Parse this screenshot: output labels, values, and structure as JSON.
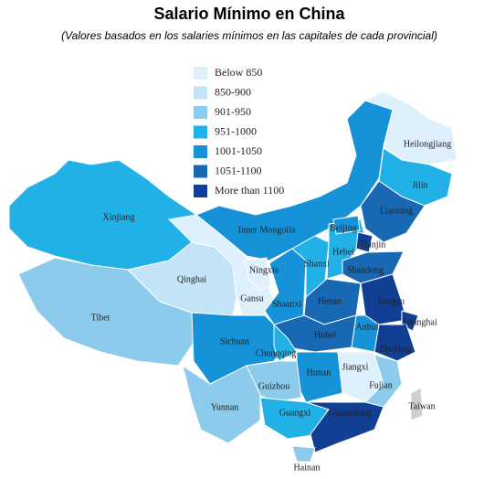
{
  "title": "Salario Mínimo  en China",
  "subtitle": "(Valores basados en los salaries mínimos en las capitales de cada provincial)",
  "legend": [
    {
      "label": "Below 850",
      "color": "#def0fb"
    },
    {
      "label": "850-900",
      "color": "#c3e3f6"
    },
    {
      "label": "901-950",
      "color": "#8ccbec"
    },
    {
      "label": "951-1000",
      "color": "#22b1e6"
    },
    {
      "label": "1001-1050",
      "color": "#1592d8"
    },
    {
      "label": "1051-1100",
      "color": "#1868b3"
    },
    {
      "label": "More than 1100",
      "color": "#103f93"
    }
  ],
  "regions": [
    {
      "name": "Xinjiang",
      "color": "#22b1e6"
    },
    {
      "name": "Tibet",
      "color": "#8ccbec"
    },
    {
      "name": "Qinghai",
      "color": "#c3e3f6"
    },
    {
      "name": "Gansu",
      "color": "#def0fb"
    },
    {
      "name": "Inner Mongolia",
      "color": "#1592d8"
    },
    {
      "name": "Heilongjiang",
      "color": "#def0fb"
    },
    {
      "name": "Jilin",
      "color": "#22b1e6"
    },
    {
      "name": "Liaoning",
      "color": "#1868b3"
    },
    {
      "name": "Ningxia",
      "color": "#def0fb"
    },
    {
      "name": "Shaanxi",
      "color": "#1592d8"
    },
    {
      "name": "Shanxi",
      "color": "#22b1e6"
    },
    {
      "name": "Hebei",
      "color": "#22b1e6"
    },
    {
      "name": "Beijing",
      "color": "#1592d8"
    },
    {
      "name": "Tianjin",
      "color": "#103f93"
    },
    {
      "name": "Shandong",
      "color": "#1868b3"
    },
    {
      "name": "Henan",
      "color": "#1868b3"
    },
    {
      "name": "Jiangsu",
      "color": "#103f93"
    },
    {
      "name": "Shanghai",
      "color": "#103f93"
    },
    {
      "name": "Anhui",
      "color": "#1592d8"
    },
    {
      "name": "Hubei",
      "color": "#1868b3"
    },
    {
      "name": "Zhejiang",
      "color": "#103f93"
    },
    {
      "name": "Sichuan",
      "color": "#1592d8"
    },
    {
      "name": "Chongqing",
      "color": "#22b1e6"
    },
    {
      "name": "Hunan",
      "color": "#1592d8"
    },
    {
      "name": "Jiangxi",
      "color": "#def0fb"
    },
    {
      "name": "Fujian",
      "color": "#8ccbec"
    },
    {
      "name": "Guizhou",
      "color": "#8ccbec"
    },
    {
      "name": "Yunnan",
      "color": "#8ccbec"
    },
    {
      "name": "Guangxi",
      "color": "#22b1e6"
    },
    {
      "name": "Guangdong",
      "color": "#103f93"
    },
    {
      "name": "Hainan",
      "color": "#8ccbec"
    },
    {
      "name": "Taiwan",
      "color": "#cfcfcf"
    }
  ]
}
